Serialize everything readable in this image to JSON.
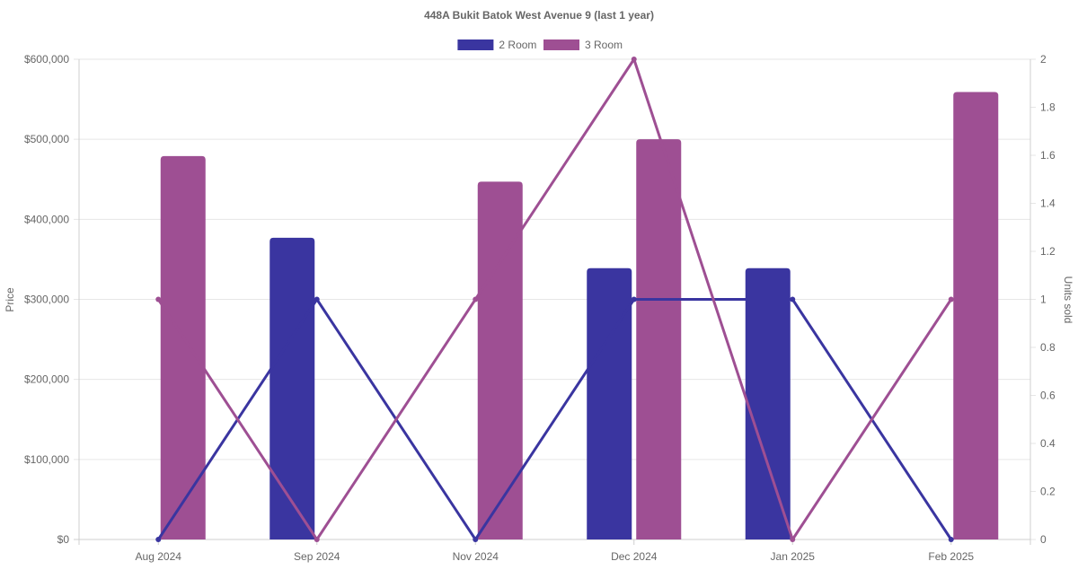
{
  "chart_data": {
    "type": "bar",
    "title": "448A Bukit Batok West Avenue 9 (last 1 year)",
    "categories": [
      "Aug 2024",
      "Sep 2024",
      "Nov 2024",
      "Dec 2024",
      "Jan 2025",
      "Feb 2025"
    ],
    "ylabel": "Price",
    "y2label": "Units sold",
    "ylim": [
      0,
      600000
    ],
    "y2lim": [
      0,
      2
    ],
    "yticks": [
      "$0",
      "$100,000",
      "$200,000",
      "$300,000",
      "$400,000",
      "$500,000",
      "$600,000"
    ],
    "y2ticks": [
      "0",
      "0.2",
      "0.4",
      "0.6",
      "0.8",
      "1",
      "1.2",
      "1.4",
      "1.6",
      "1.8",
      "2"
    ],
    "legend_position": "top",
    "grid": true,
    "series": [
      {
        "name": "2 Room",
        "color": "#3a35a0",
        "price": [
          null,
          377000,
          null,
          339000,
          339000,
          null
        ],
        "units_sold": [
          0,
          1,
          0,
          1,
          1,
          0
        ]
      },
      {
        "name": "3 Room",
        "color": "#9e4f93",
        "price": [
          479000,
          null,
          447000,
          500000,
          null,
          559000
        ],
        "units_sold": [
          1,
          0,
          1,
          2,
          0,
          1
        ]
      }
    ]
  }
}
